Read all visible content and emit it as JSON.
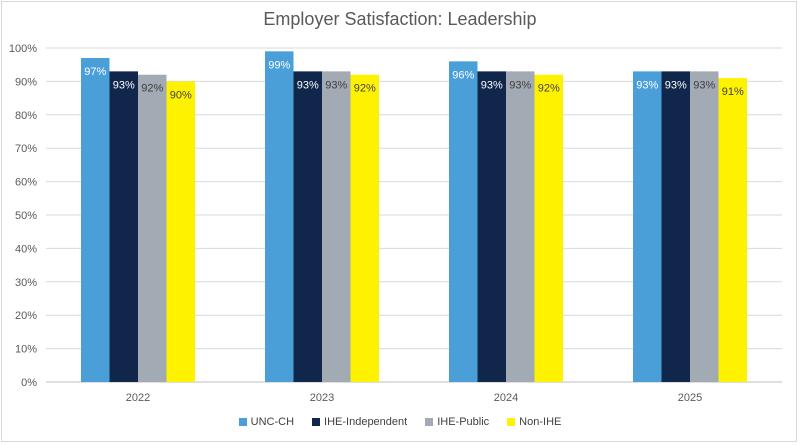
{
  "chart_data": {
    "type": "bar",
    "title": "Employer Satisfaction: Leadership",
    "categories": [
      "2022",
      "2023",
      "2024",
      "2025"
    ],
    "series": [
      {
        "name": "UNC-CH",
        "color": "#4a9fd8",
        "values": [
          97,
          99,
          96,
          93
        ],
        "labels": [
          "97%",
          "99%",
          "96%",
          "93%"
        ]
      },
      {
        "name": "IHE-Independent",
        "color": "#10264a",
        "values": [
          93,
          93,
          93,
          93
        ],
        "labels": [
          "93%",
          "93%",
          "93%",
          "93%"
        ]
      },
      {
        "name": "IHE-Public",
        "color": "#a2aab3",
        "values": [
          92,
          93,
          93,
          93
        ],
        "labels": [
          "92%",
          "93%",
          "93%",
          "93%"
        ]
      },
      {
        "name": "Non-IHE",
        "color": "#fff200",
        "values": [
          90,
          92,
          92,
          91
        ],
        "labels": [
          "90%",
          "92%",
          "92%",
          "91%"
        ]
      }
    ],
    "y_ticks": [
      "0%",
      "10%",
      "20%",
      "30%",
      "40%",
      "50%",
      "60%",
      "70%",
      "80%",
      "90%",
      "100%"
    ],
    "ylim": [
      0,
      100
    ],
    "grid": true,
    "legend_position": "bottom"
  }
}
